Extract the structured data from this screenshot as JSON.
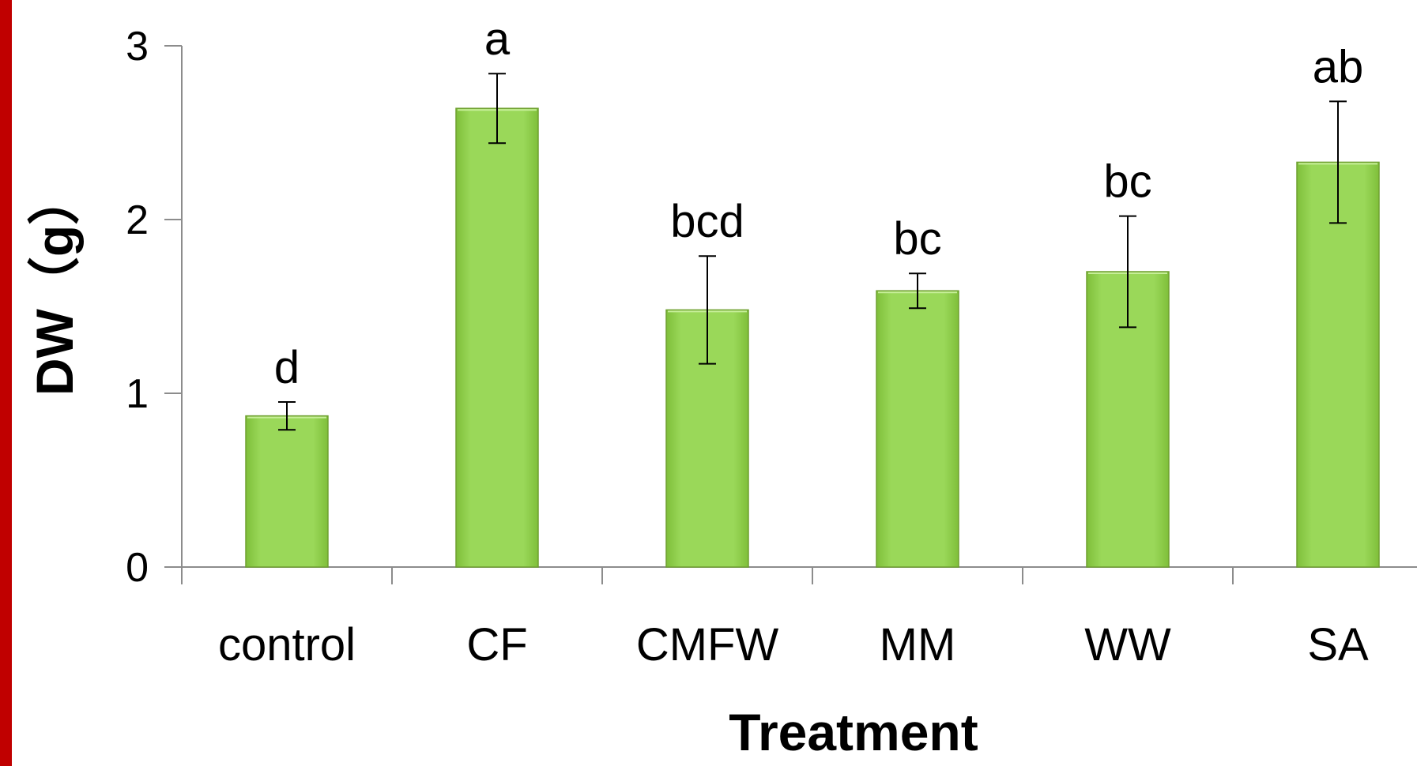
{
  "chart_data": {
    "type": "bar",
    "xlabel": "Treatment",
    "ylabel": "DW（g）",
    "ylim": [
      0,
      3
    ],
    "yticks": [
      "0",
      "1",
      "2",
      "3"
    ],
    "categories": [
      "control",
      "CF",
      "CMFW",
      "MM",
      "WW",
      "SA"
    ],
    "values": [
      0.87,
      2.64,
      1.48,
      1.59,
      1.7,
      2.33
    ],
    "error": [
      0.08,
      0.2,
      0.31,
      0.1,
      0.32,
      0.35
    ],
    "significance": [
      "d",
      "a",
      "bcd",
      "bc",
      "bc",
      "ab"
    ],
    "grid": false,
    "legend": false
  },
  "colors": {
    "bar": "#92d050",
    "bar_edge": "#6fa030",
    "frame_accent": "#c00000"
  }
}
